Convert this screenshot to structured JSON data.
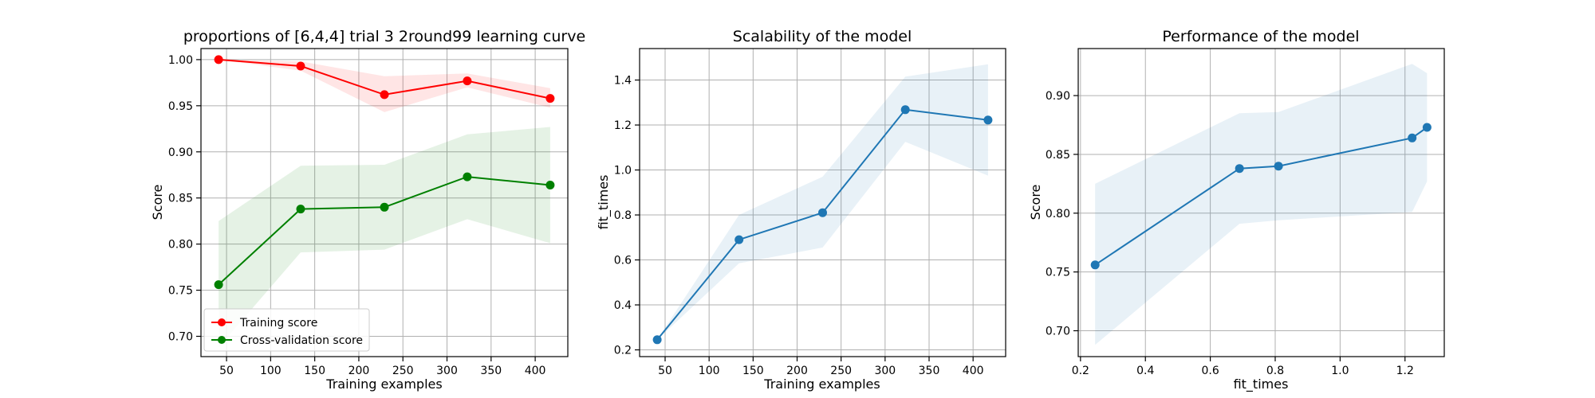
{
  "chart_data": [
    {
      "type": "line",
      "title": "proportions of [6,4,4] trial 3 2round99 learning curve",
      "xlabel": "Training examples",
      "ylabel": "Score",
      "xlim": [
        21,
        437
      ],
      "ylim": [
        0.678,
        1.012
      ],
      "xticks": [
        50,
        100,
        150,
        200,
        250,
        300,
        350,
        400
      ],
      "yticks": [
        0.7,
        0.75,
        0.8,
        0.85,
        0.9,
        0.95,
        1.0
      ],
      "ytick_labels": [
        "0.70",
        "0.75",
        "0.80",
        "0.85",
        "0.90",
        "0.95",
        "1.00"
      ],
      "grid": true,
      "legend_position": "lower-left",
      "x": [
        41,
        134,
        229,
        323,
        417
      ],
      "series": [
        {
          "name": "Training score",
          "color": "#ff0000",
          "values": [
            1.0,
            0.993,
            0.962,
            0.977,
            0.958
          ],
          "band_lower": [
            1.0,
            0.988,
            0.943,
            0.97,
            0.948
          ],
          "band_upper": [
            1.0,
            0.998,
            0.982,
            0.985,
            0.969
          ]
        },
        {
          "name": "Cross-validation score",
          "color": "#008000",
          "values": [
            0.756,
            0.838,
            0.84,
            0.873,
            0.864
          ],
          "band_lower": [
            0.688,
            0.791,
            0.794,
            0.827,
            0.801
          ],
          "band_upper": [
            0.825,
            0.885,
            0.886,
            0.919,
            0.927
          ]
        }
      ]
    },
    {
      "type": "line",
      "title": "Scalability of the model",
      "xlabel": "Training examples",
      "ylabel": "fit_times",
      "xlim": [
        21,
        437
      ],
      "ylim": [
        0.17,
        1.54
      ],
      "xticks": [
        50,
        100,
        150,
        200,
        250,
        300,
        350,
        400
      ],
      "yticks": [
        0.2,
        0.4,
        0.6,
        0.8,
        1.0,
        1.2,
        1.4
      ],
      "ytick_labels": [
        "0.2",
        "0.4",
        "0.6",
        "0.8",
        "1.0",
        "1.2",
        "1.4"
      ],
      "grid": true,
      "x": [
        41,
        134,
        229,
        323,
        417
      ],
      "series": [
        {
          "color": "#1f77b4",
          "values": [
            0.245,
            0.69,
            0.81,
            1.268,
            1.222
          ],
          "band_lower": [
            0.245,
            0.585,
            0.655,
            1.125,
            0.975
          ],
          "band_upper": [
            0.245,
            0.8,
            0.97,
            1.415,
            1.47
          ]
        }
      ]
    },
    {
      "type": "line",
      "title": "Performance of the model",
      "xlabel": "fit_times",
      "ylabel": "Score",
      "xlim": [
        0.193,
        1.321
      ],
      "ylim": [
        0.678,
        0.94
      ],
      "xticks": [
        0.2,
        0.4,
        0.6,
        0.8,
        1.0,
        1.2
      ],
      "xtick_labels": [
        "0.2",
        "0.4",
        "0.6",
        "0.8",
        "1.0",
        "1.2"
      ],
      "yticks": [
        0.7,
        0.75,
        0.8,
        0.85,
        0.9
      ],
      "ytick_labels": [
        "0.70",
        "0.75",
        "0.80",
        "0.85",
        "0.90"
      ],
      "grid": true,
      "series": [
        {
          "color": "#1f77b4",
          "x": [
            0.245,
            0.69,
            0.81,
            1.222,
            1.268
          ],
          "values": [
            0.756,
            0.838,
            0.84,
            0.864,
            0.873
          ],
          "band_lower": [
            0.688,
            0.791,
            0.794,
            0.801,
            0.827
          ],
          "band_upper": [
            0.825,
            0.885,
            0.886,
            0.927,
            0.919
          ]
        }
      ]
    }
  ]
}
